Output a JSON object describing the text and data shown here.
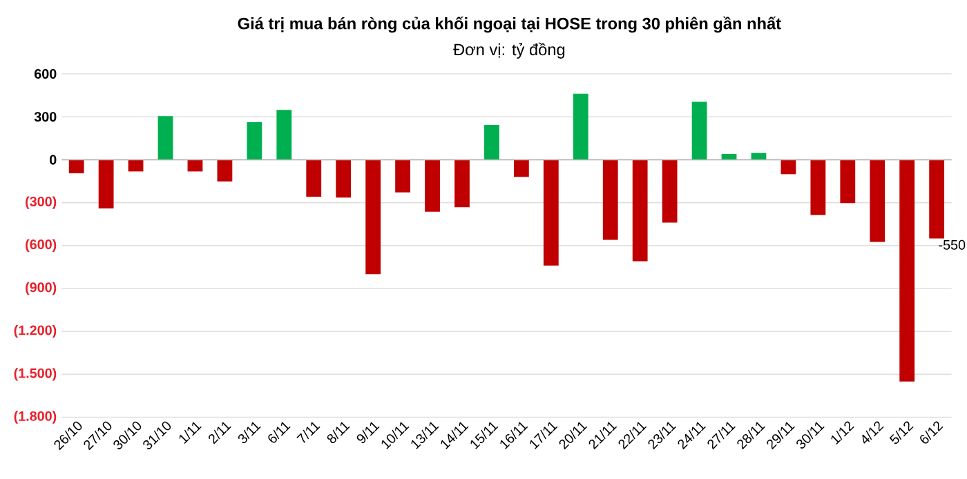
{
  "chart_data": {
    "type": "bar",
    "title": "Giá trị mua bán ròng của khối ngoại tại HOSE trong 30 phiên gần nhất",
    "subtitle": "Đơn vị: tỷ đồng",
    "categories": [
      "26/10",
      "27/10",
      "30/10",
      "31/10",
      "1/11",
      "2/11",
      "3/11",
      "6/11",
      "7/11",
      "8/11",
      "9/11",
      "10/11",
      "13/11",
      "14/11",
      "15/11",
      "16/11",
      "17/11",
      "20/11",
      "21/11",
      "22/11",
      "23/11",
      "24/11",
      "27/11",
      "28/11",
      "29/11",
      "30/11",
      "1/12",
      "4/12",
      "5/12",
      "6/12"
    ],
    "values": [
      -95,
      -340,
      -82,
      305,
      -82,
      -152,
      262,
      348,
      -259,
      -265,
      -800,
      -228,
      -363,
      -332,
      243,
      -120,
      -740,
      461,
      -560,
      -709,
      -440,
      405,
      41,
      47,
      -101,
      -386,
      -303,
      -575,
      -1550,
      -550
    ],
    "colors": [
      "#c00000",
      "#c00000",
      "#c00000",
      "#00b050",
      "#c00000",
      "#c00000",
      "#00b050",
      "#00b050",
      "#c00000",
      "#c00000",
      "#c00000",
      "#c00000",
      "#c00000",
      "#c00000",
      "#00b050",
      "#c00000",
      "#c00000",
      "#00b050",
      "#c00000",
      "#c00000",
      "#c00000",
      "#00b050",
      "#00b050",
      "#00b050",
      "#c00000",
      "#c00000",
      "#c00000",
      "#c00000",
      "#c00000",
      "#c00000"
    ],
    "value_labels": [
      null,
      null,
      null,
      null,
      null,
      null,
      null,
      null,
      null,
      null,
      null,
      null,
      null,
      null,
      null,
      null,
      null,
      null,
      null,
      null,
      null,
      null,
      null,
      null,
      null,
      null,
      null,
      null,
      null,
      "-550"
    ],
    "ylim": [
      -1800,
      600
    ],
    "yticks": [
      600,
      300,
      0,
      {
        "value": -300,
        "label": "(300)"
      },
      {
        "value": -600,
        "label": "(600)"
      },
      {
        "value": -900,
        "label": "(900)"
      },
      {
        "value": -1200,
        "label": "(1.200)"
      },
      {
        "value": -1500,
        "label": "(1.500)"
      },
      {
        "value": -1800,
        "label": "(1.800)"
      }
    ],
    "grid": "y"
  }
}
